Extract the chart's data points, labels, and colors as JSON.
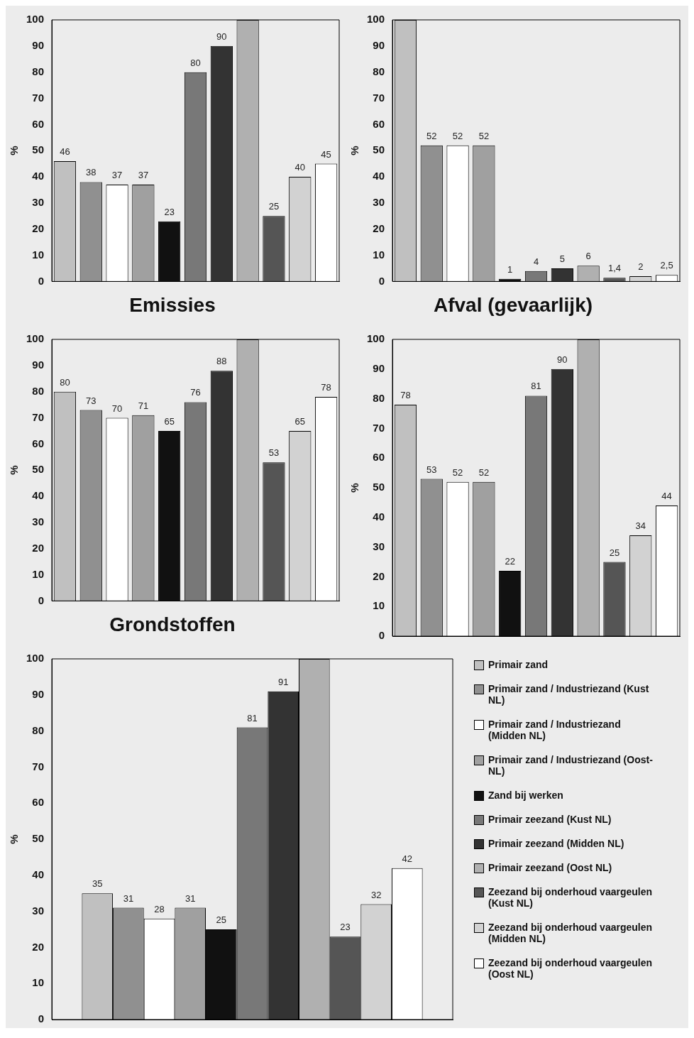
{
  "chart_data": [
    {
      "type": "bar",
      "title": "Emissies",
      "ylabel": "%",
      "categories": [
        null,
        null,
        null,
        null,
        null,
        null,
        null,
        null,
        null,
        null,
        null
      ],
      "values": [
        46,
        38,
        37,
        37,
        23,
        80,
        90,
        100,
        25,
        40,
        45
      ],
      "value_labels": [
        "46",
        "38",
        "37",
        "37",
        "23",
        "80",
        "90",
        null,
        "25",
        "40",
        "45"
      ],
      "colors": [
        "#c0c0c0",
        "#909090",
        "#ffffff",
        "#a0a0a0",
        "#111111",
        "#787878",
        "#333333",
        "#b0b0b0",
        "#555555",
        "#d2d2d2",
        "#ffffff"
      ],
      "ylim": [
        0,
        100
      ],
      "yticks": [
        0,
        10,
        20,
        30,
        40,
        50,
        60,
        70,
        80,
        90,
        100
      ],
      "tick_labels": "y"
    },
    {
      "type": "bar",
      "title": "Afval (gevaarlijk)",
      "ylabel": "%",
      "categories": [
        null,
        null,
        null,
        null,
        null,
        null,
        null,
        null,
        null,
        null,
        null
      ],
      "values": [
        100,
        52,
        52,
        52,
        1,
        4,
        5,
        6,
        1.4,
        2,
        2.5
      ],
      "value_labels": [
        null,
        "52",
        "52",
        "52",
        "1",
        "4",
        "5",
        "6",
        "1,4",
        "2",
        "2,5"
      ],
      "colors": [
        "#c0c0c0",
        "#909090",
        "#ffffff",
        "#a0a0a0",
        "#111111",
        "#787878",
        "#333333",
        "#b0b0b0",
        "#555555",
        "#d2d2d2",
        "#ffffff"
      ],
      "ylim": [
        0,
        100
      ],
      "yticks": [
        0,
        10,
        20,
        30,
        40,
        50,
        60,
        70,
        80,
        90,
        100
      ],
      "tick_labels": "y"
    },
    {
      "type": "bar",
      "title": "Grondstoffen",
      "ylabel": "%",
      "categories": [
        null,
        null,
        null,
        null,
        null,
        null,
        null,
        null,
        null,
        null,
        null
      ],
      "values": [
        80,
        73,
        70,
        71,
        65,
        76,
        88,
        100,
        53,
        65,
        78
      ],
      "value_labels": [
        "80",
        "73",
        "70",
        "71",
        "65",
        "76",
        "88",
        null,
        "53",
        "65",
        "78"
      ],
      "colors": [
        "#c0c0c0",
        "#909090",
        "#ffffff",
        "#a0a0a0",
        "#111111",
        "#787878",
        "#333333",
        "#b0b0b0",
        "#555555",
        "#d2d2d2",
        "#ffffff"
      ],
      "ylim": [
        0,
        100
      ],
      "yticks": [
        0,
        10,
        20,
        30,
        40,
        50,
        60,
        70,
        80,
        90,
        100
      ],
      "tick_labels": "y"
    },
    {
      "type": "bar",
      "ylabel": "%",
      "categories": [
        null,
        null,
        null,
        null,
        null,
        null,
        null,
        null,
        null,
        null,
        null
      ],
      "values": [
        78,
        53,
        52,
        52,
        22,
        81,
        90,
        100,
        25,
        34,
        44
      ],
      "value_labels": [
        "78",
        "53",
        "52",
        "52",
        "22",
        "81",
        "90",
        null,
        "25",
        "34",
        "44"
      ],
      "colors": [
        "#c0c0c0",
        "#909090",
        "#ffffff",
        "#a0a0a0",
        "#111111",
        "#787878",
        "#333333",
        "#b0b0b0",
        "#555555",
        "#d2d2d2",
        "#ffffff"
      ],
      "ylim": [
        0,
        100
      ],
      "yticks": [
        0,
        10,
        20,
        30,
        40,
        50,
        60,
        70,
        80,
        90,
        100
      ],
      "tick_labels": "y"
    },
    {
      "type": "bar",
      "ylabel": "%",
      "categories": [
        null
      ],
      "series": [
        {
          "name": "Primair zand",
          "color": "#c0c0c0",
          "values": [
            35
          ],
          "value_labels": [
            "35"
          ]
        },
        {
          "name": "Primair zand / Industriezand (Kust NL)",
          "color": "#909090",
          "values": [
            31
          ],
          "value_labels": [
            "31"
          ]
        },
        {
          "name": "Primair zand / Industriezand (Midden NL)",
          "color": "#ffffff",
          "values": [
            28
          ],
          "value_labels": [
            "28"
          ]
        },
        {
          "name": "Primair zand / Industriezand (Oost-NL)",
          "color": "#a0a0a0",
          "values": [
            31
          ],
          "value_labels": [
            "31"
          ]
        },
        {
          "name": "Zand bij werken",
          "color": "#111111",
          "values": [
            25
          ],
          "value_labels": [
            "25"
          ]
        },
        {
          "name": "Primair zeezand (Kust NL)",
          "color": "#787878",
          "values": [
            81
          ],
          "value_labels": [
            "81"
          ]
        },
        {
          "name": "Primair zeezand (Midden NL)",
          "color": "#333333",
          "values": [
            91
          ],
          "value_labels": [
            "91"
          ]
        },
        {
          "name": "Primair zeezand (Oost NL)",
          "color": "#b0b0b0",
          "values": [
            100
          ],
          "value_labels": [
            null
          ]
        },
        {
          "name": "Zeezand bij onderhoud vaargeulen (Kust NL)",
          "color": "#555555",
          "values": [
            23
          ],
          "value_labels": [
            "23"
          ]
        },
        {
          "name": "Zeezand bij onderhoud vaargeulen (Midden NL)",
          "color": "#d2d2d2",
          "values": [
            32
          ],
          "value_labels": [
            "32"
          ]
        },
        {
          "name": "Zeezand bij onderhoud vaargeulen (Oost NL)",
          "color": "#ffffff",
          "values": [
            42
          ],
          "value_labels": [
            "42"
          ]
        }
      ],
      "ylim": [
        0,
        100
      ],
      "yticks": [
        0,
        10,
        20,
        30,
        40,
        50,
        60,
        70,
        80,
        90,
        100
      ],
      "tick_labels": "y",
      "legend": "right"
    }
  ]
}
